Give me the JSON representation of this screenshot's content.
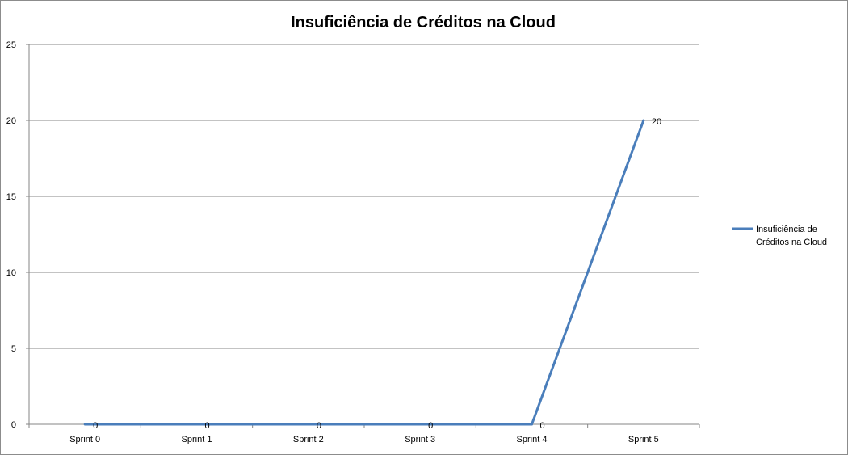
{
  "chart_data": {
    "type": "line",
    "title": "Insuficiência de Créditos na Cloud",
    "categories": [
      "Sprint 0",
      "Sprint 1",
      "Sprint 2",
      "Sprint 3",
      "Sprint 4",
      "Sprint 5"
    ],
    "series": [
      {
        "name": "Insuficiência de Créditos na Cloud",
        "values": [
          0,
          0,
          0,
          0,
          0,
          20
        ],
        "data_labels": [
          "0",
          "0",
          "0",
          "0",
          "0",
          "20"
        ]
      }
    ],
    "ylim": [
      0,
      25
    ],
    "yticks": [
      "0",
      "5",
      "10",
      "15",
      "20",
      "25"
    ],
    "grid": true,
    "legend": "right",
    "legend_lines": [
      "Insuficiência de",
      "Créditos na Cloud"
    ],
    "colors": {
      "series": "#4a7ebb",
      "grid": "#878787",
      "axis": "#868686"
    }
  }
}
